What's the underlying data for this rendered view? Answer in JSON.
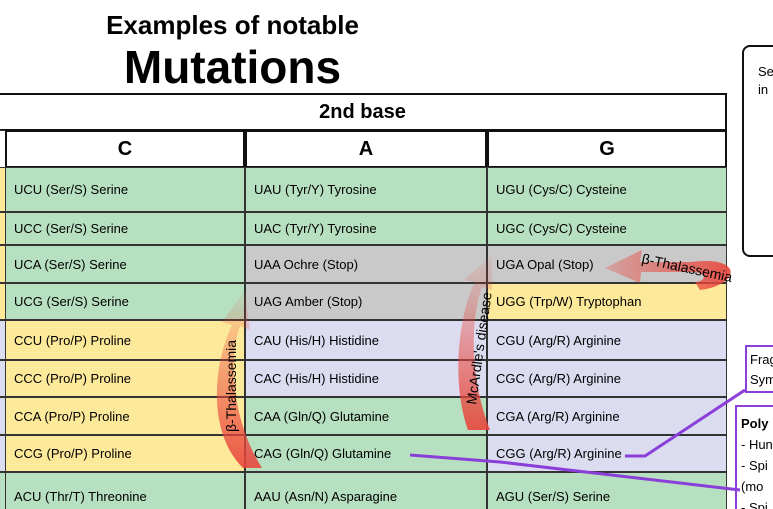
{
  "title": {
    "line1": "Examples of notable",
    "line2": "Mutations"
  },
  "table": {
    "header": "2nd base",
    "columns": [
      "C",
      "A",
      "G"
    ],
    "rows": [
      [
        "UCU (Ser/S) Serine",
        "UAU (Tyr/Y) Tyrosine",
        "UGU (Cys/C) Cysteine"
      ],
      [
        "UCC (Ser/S) Serine",
        "UAC (Tyr/Y) Tyrosine",
        "UGC (Cys/C) Cysteine"
      ],
      [
        "UCA (Ser/S) Serine",
        "UAA Ochre (Stop)",
        "UGA Opal (Stop)"
      ],
      [
        "UCG (Ser/S) Serine",
        "UAG Amber (Stop)",
        "UGG (Trp/W) Tryptophan"
      ],
      [
        "CCU (Pro/P) Proline",
        "CAU (His/H) Histidine",
        "CGU (Arg/R) Arginine"
      ],
      [
        "CCC (Pro/P) Proline",
        "CAC (His/H) Histidine",
        "CGC (Arg/R) Arginine"
      ],
      [
        "CCA (Pro/P) Proline",
        "CAA (Gln/Q) Glutamine",
        "CGA (Arg/R) Arginine"
      ],
      [
        "CCG (Pro/P) Proline",
        "CAG (Gln/Q) Glutamine",
        "CGG (Arg/R) Arginine"
      ],
      [
        "ACU (Thr/T) Threonine",
        "AAU (Asn/N) Asparagine",
        "AGU (Ser/S) Serine"
      ]
    ]
  },
  "annotations": [
    "β-Thalassemia",
    "McArdle's disease",
    "β-Thalassemia"
  ],
  "side": {
    "box1": [
      "Se",
      "in"
    ],
    "box2": [
      "Frag",
      "Sym"
    ],
    "box3": [
      "Poly",
      "- Hun",
      "- Spi",
      "(mo",
      "- Spi"
    ]
  }
}
